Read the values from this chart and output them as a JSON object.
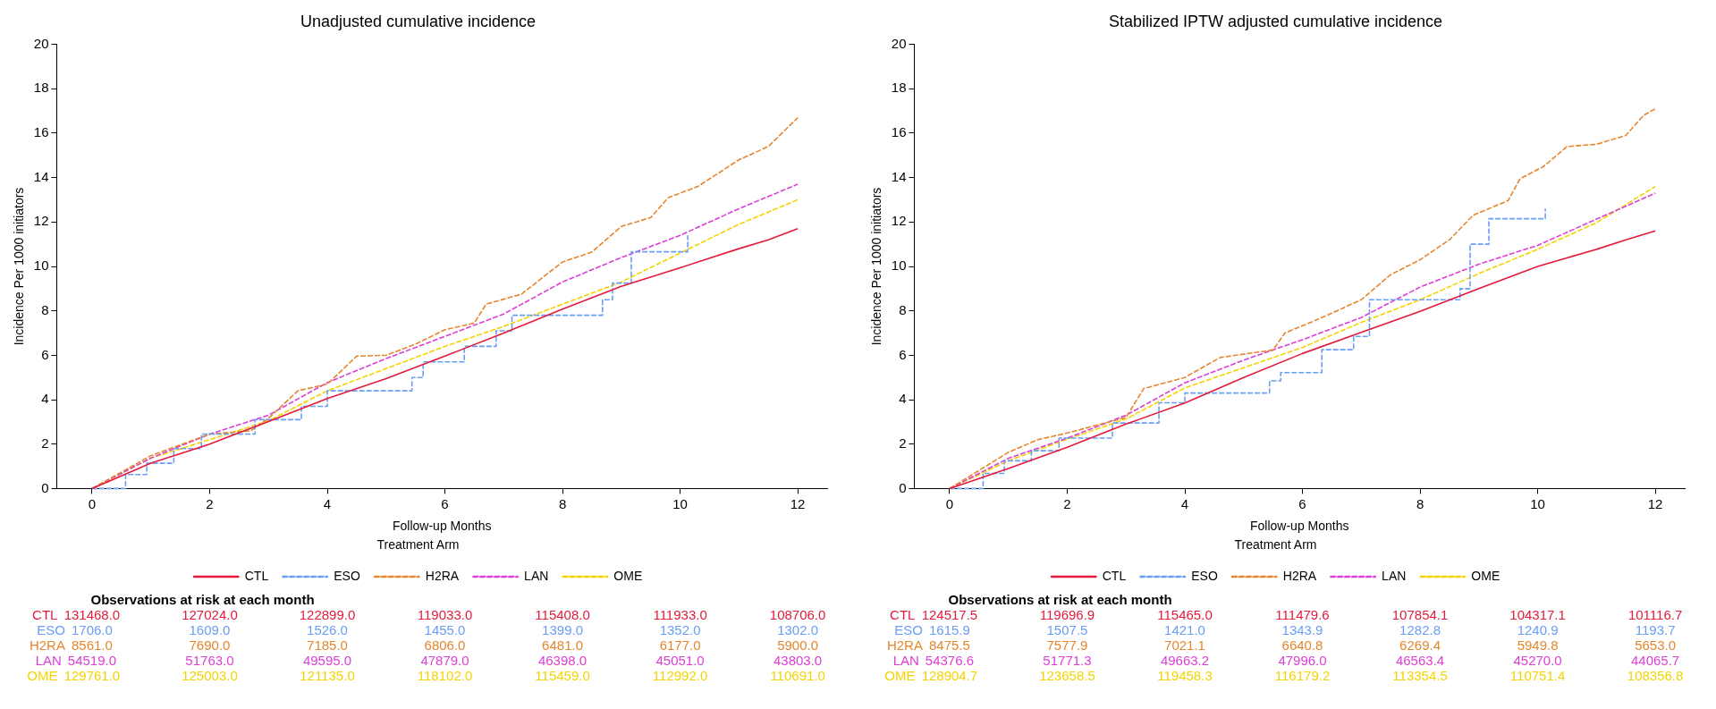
{
  "chart_data": [
    {
      "type": "line",
      "title": "Unadjusted cumulative incidence",
      "xlabel": "Follow-up Months",
      "ylabel": "Incidence Per 1000 initiators",
      "legend": "bottom",
      "legend_title": "Treatment Arm",
      "xlim": [
        -0.6,
        12.5
      ],
      "xticks": [
        0,
        2,
        4,
        6,
        8,
        10,
        12
      ],
      "ylim": [
        0,
        20
      ],
      "yticks": [
        0,
        2,
        4,
        6,
        8,
        10,
        12,
        14,
        16,
        18,
        20
      ],
      "grid": false,
      "series": [
        {
          "name": "CTL",
          "color": "#e41a3c",
          "line_style": "solid",
          "x": [
            0,
            1,
            2,
            3,
            4,
            5,
            6,
            7,
            8,
            9,
            10,
            11,
            11.5,
            12
          ],
          "values": [
            0,
            1.14,
            2.0,
            3.02,
            4.05,
            4.95,
            5.96,
            7.0,
            8.08,
            9.1,
            9.94,
            10.8,
            11.2,
            11.7
          ]
        },
        {
          "name": "ESO",
          "type": "step",
          "color": "#6a9ef5",
          "line_style": "dashed",
          "x": [
            0,
            0.57,
            0.93,
            1.39,
            1.86,
            2.77,
            3.56,
            4.0,
            5.44,
            5.63,
            6.33,
            6.87,
            7.14,
            8.68,
            8.85,
            9.17,
            10.13
          ],
          "values": [
            0,
            0.63,
            1.14,
            1.8,
            2.45,
            3.1,
            3.7,
            4.4,
            5.0,
            5.7,
            6.4,
            7.1,
            7.8,
            8.5,
            9.25,
            10.66,
            11.4
          ]
        },
        {
          "name": "H2RA",
          "color": "#e5862e",
          "line_style": "dashed",
          "x": [
            0,
            1,
            2,
            2.7,
            3,
            3.5,
            4,
            4.5,
            5,
            5.5,
            6,
            6.5,
            6.7,
            7.3,
            8,
            8.5,
            9,
            9.5,
            9.8,
            10.3,
            11,
            11.5,
            12
          ],
          "values": [
            0,
            1.48,
            2.45,
            2.6,
            3.16,
            4.4,
            4.7,
            5.96,
            6.0,
            6.5,
            7.15,
            7.45,
            8.3,
            8.75,
            10.2,
            10.65,
            11.8,
            12.2,
            13.1,
            13.6,
            14.8,
            15.4,
            16.7
          ]
        },
        {
          "name": "LAN",
          "color": "#dd3ed6",
          "line_style": "dashed",
          "x": [
            0,
            1,
            2,
            3,
            4,
            5,
            6,
            7,
            8,
            9,
            10,
            11,
            12
          ],
          "values": [
            0,
            1.37,
            2.45,
            3.3,
            4.77,
            5.85,
            6.85,
            7.86,
            9.3,
            10.4,
            11.4,
            12.6,
            13.7
          ]
        },
        {
          "name": "OME",
          "color": "#f5d300",
          "line_style": "dashed",
          "x": [
            0,
            1,
            2,
            3,
            4,
            5,
            6,
            7,
            8,
            9,
            10,
            11,
            12
          ],
          "values": [
            0,
            1.37,
            2.2,
            3.05,
            4.4,
            5.4,
            6.4,
            7.3,
            8.3,
            9.3,
            10.6,
            11.9,
            13.0
          ]
        }
      ],
      "annotations": [
        "Observations at risk at each month",
        "CTL 131468.0 127024.0 122899.0 119033.0 115408.0 111933.0 108706.0",
        "ESO 1706.0 1609.0 1526.0 1455.0 1399.0 1352.0 1302.0",
        "H2RA 8561.0 7690.0 7185.0 6806.0 6481.0 6177.0 5900.0",
        "LAN 54519.0 51763.0 49595.0 47879.0 46398.0 45051.0 43803.0",
        "OME 129761.0 125003.0 121135.0 118102.0 115459.0 112992.0 110691.0"
      ]
    },
    {
      "type": "line",
      "title": "Stabilized IPTW adjusted cumulative incidence",
      "xlabel": "Follow-up Months",
      "ylabel": "Incidence Per 1000 initiators",
      "legend": "bottom",
      "legend_title": "Treatment Arm",
      "xlim": [
        -0.6,
        12.5
      ],
      "xticks": [
        0,
        2,
        4,
        6,
        8,
        10,
        12
      ],
      "ylim": [
        0,
        20
      ],
      "yticks": [
        0,
        2,
        4,
        6,
        8,
        10,
        12,
        14,
        16,
        18,
        20
      ],
      "grid": false,
      "series": [
        {
          "name": "CTL",
          "color": "#e41a3c",
          "line_style": "solid",
          "x": [
            0,
            1,
            2,
            3,
            4,
            5,
            6,
            7,
            8,
            9,
            10,
            11,
            11.5,
            12
          ],
          "values": [
            0,
            0.9,
            1.86,
            2.9,
            3.85,
            5.0,
            6.08,
            7.03,
            7.98,
            9.0,
            10.0,
            10.77,
            11.2,
            11.6
          ]
        },
        {
          "name": "ESO",
          "type": "step",
          "color": "#6a9ef5",
          "line_style": "dashed",
          "x": [
            0,
            0.57,
            0.93,
            1.39,
            1.86,
            2.77,
            3.56,
            4.0,
            5.44,
            5.63,
            6.33,
            6.87,
            7.14,
            8.68,
            8.85,
            9.17,
            10.13
          ],
          "values": [
            0,
            0.68,
            1.25,
            1.7,
            2.27,
            2.95,
            3.86,
            4.3,
            4.85,
            5.22,
            6.25,
            6.85,
            8.5,
            9.0,
            11.0,
            12.15,
            12.6
          ]
        },
        {
          "name": "H2RA",
          "color": "#e5862e",
          "line_style": "dashed",
          "x": [
            0,
            1,
            1.5,
            2,
            3,
            3.3,
            4,
            4.6,
            5.5,
            5.7,
            6.3,
            7,
            7.5,
            8,
            8.5,
            8.9,
            9.5,
            9.7,
            10.1,
            10.5,
            11,
            11.5,
            11.8,
            12
          ],
          "values": [
            0,
            1.63,
            2.2,
            2.5,
            3.2,
            4.5,
            5.0,
            5.9,
            6.24,
            7.0,
            7.66,
            8.5,
            9.63,
            10.3,
            11.2,
            12.3,
            12.97,
            13.95,
            14.5,
            15.4,
            15.5,
            15.9,
            16.8,
            17.1
          ]
        },
        {
          "name": "LAN",
          "color": "#dd3ed6",
          "line_style": "dashed",
          "x": [
            0,
            1,
            2,
            3,
            4,
            5,
            6,
            7,
            8,
            9,
            10,
            11,
            12
          ],
          "values": [
            0,
            1.36,
            2.27,
            3.3,
            4.76,
            5.78,
            6.7,
            7.7,
            9.07,
            10.1,
            10.95,
            12.13,
            13.3
          ]
        },
        {
          "name": "OME",
          "color": "#f5d300",
          "line_style": "dashed",
          "x": [
            0,
            1,
            2,
            3,
            4,
            5,
            6,
            7,
            8,
            9,
            10,
            11,
            12
          ],
          "values": [
            0,
            1.25,
            2.22,
            3.13,
            4.53,
            5.44,
            6.35,
            7.48,
            8.5,
            9.68,
            10.77,
            11.97,
            13.6
          ]
        }
      ],
      "annotations": [
        "Observations at risk at each month",
        "CTL 124517.5 119696.9 115465.0 111479.6 107854.1 104317.1 101116.7",
        "ESO 1615.9 1507.5 1421.0 1343.9 1282.8 1240.9 1193.7",
        "H2RA 8475.5 7577.9 7021.1 6640.8 6269.4 5949.8 5653.0",
        "LAN 54376.6 51771.3 49663.2 47996.0 46563.4 45270.0 44065.7",
        "OME 128904.7 123658.5 119458.3 116179.2 113354.5 110751.4 108356.8"
      ]
    }
  ]
}
